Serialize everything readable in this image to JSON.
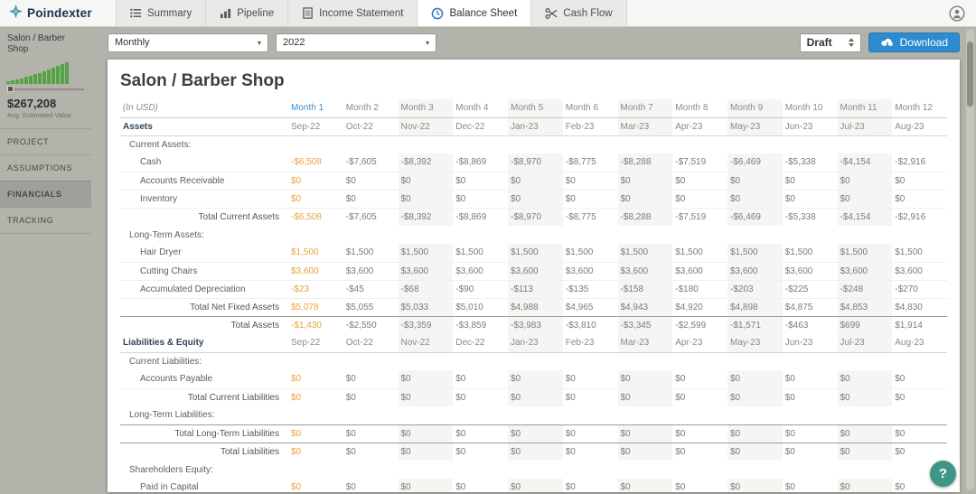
{
  "app": {
    "logo_text": "Poindexter",
    "nav": [
      {
        "label": "Summary",
        "icon": "list-icon",
        "active": false
      },
      {
        "label": "Pipeline",
        "icon": "bar-chart-icon",
        "active": false
      },
      {
        "label": "Income Statement",
        "icon": "document-icon",
        "active": false
      },
      {
        "label": "Balance Sheet",
        "icon": "clock-icon",
        "active": true
      },
      {
        "label": "Cash Flow",
        "icon": "scissors-icon",
        "active": false
      }
    ]
  },
  "sidebar": {
    "project_name": "Salon / Barber Shop",
    "avg_value": "$267,208",
    "avg_value_label": "Avg. Estimated Value",
    "menu": [
      {
        "label": "PROJECT",
        "active": false
      },
      {
        "label": "ASSUMPTIONS",
        "active": false
      },
      {
        "label": "FINANCIALS",
        "active": true
      },
      {
        "label": "TRACKING",
        "active": false
      }
    ],
    "sparkline": {
      "type": "bar",
      "color": "#55a347",
      "values": [
        3,
        4,
        5,
        6,
        8,
        9,
        11,
        12,
        14,
        16,
        18,
        20,
        22,
        24
      ]
    }
  },
  "toolbar": {
    "period_select": "Monthly",
    "year_select": "2022",
    "status_select": "Draft",
    "download_label": "Download"
  },
  "main": {
    "title": "Salon / Barber Shop"
  },
  "balance_sheet": {
    "in_usd_label": "(In USD)",
    "month_headers": [
      "Month 1",
      "Month 2",
      "Month 3",
      "Month 4",
      "Month 5",
      "Month 6",
      "Month 7",
      "Month 8",
      "Month 9",
      "Month 10",
      "Month 11",
      "Month 12"
    ],
    "date_headers": [
      "Sep-22",
      "Oct-22",
      "Nov-22",
      "Dec-22",
      "Jan-23",
      "Feb-23",
      "Mar-23",
      "Apr-23",
      "May-23",
      "Jun-23",
      "Jul-23",
      "Aug-23"
    ],
    "rows": [
      {
        "type": "group",
        "label": "Assets"
      },
      {
        "type": "section",
        "label": "Current Assets:"
      },
      {
        "type": "data",
        "label": "Cash",
        "values": [
          "-$6,508",
          "-$7,605",
          "-$8,392",
          "-$8,869",
          "-$8,970",
          "-$8,775",
          "-$8,288",
          "-$7,519",
          "-$6,469",
          "-$5,338",
          "-$4,154",
          "-$2,916"
        ]
      },
      {
        "type": "data",
        "label": "Accounts Receivable",
        "fill": "$0"
      },
      {
        "type": "data",
        "label": "Inventory",
        "fill": "$0"
      },
      {
        "type": "total",
        "label": "Total Current Assets",
        "values": [
          "-$6,508",
          "-$7,605",
          "-$8,392",
          "-$8,869",
          "-$8,970",
          "-$8,775",
          "-$8,288",
          "-$7,519",
          "-$6,469",
          "-$5,338",
          "-$4,154",
          "-$2,916"
        ]
      },
      {
        "type": "section",
        "label": "Long-Term Assets:"
      },
      {
        "type": "data",
        "label": "Hair Dryer",
        "fill": "$1,500"
      },
      {
        "type": "data",
        "label": "Cutting Chairs",
        "fill": "$3,600"
      },
      {
        "type": "data",
        "label": "Accumulated Depreciation",
        "values": [
          "-$23",
          "-$45",
          "-$68",
          "-$90",
          "-$113",
          "-$135",
          "-$158",
          "-$180",
          "-$203",
          "-$225",
          "-$248",
          "-$270"
        ]
      },
      {
        "type": "total",
        "label": "Total Net Fixed Assets",
        "values": [
          "$5,078",
          "$5,055",
          "$5,033",
          "$5,010",
          "$4,988",
          "$4,965",
          "$4,943",
          "$4,920",
          "$4,898",
          "$4,875",
          "$4,853",
          "$4,830"
        ]
      },
      {
        "type": "total",
        "label": "Total Assets",
        "values": [
          "-$1,430",
          "-$2,550",
          "-$3,359",
          "-$3,859",
          "-$3,983",
          "-$3,810",
          "-$3,345",
          "-$2,599",
          "-$1,571",
          "-$463",
          "$699",
          "$1,914"
        ]
      },
      {
        "type": "group",
        "label": "Liabilities & Equity"
      },
      {
        "type": "section",
        "label": "Current Liabilities:"
      },
      {
        "type": "data",
        "label": "Accounts Payable",
        "fill": "$0"
      },
      {
        "type": "total",
        "label": "Total Current Liabilities",
        "fill": "$0"
      },
      {
        "type": "section",
        "label": "Long-Term Liabilities:"
      },
      {
        "type": "total",
        "label": "Total Long-Term Liabilities",
        "fill": "$0"
      },
      {
        "type": "total",
        "label": "Total Liabilities",
        "fill": "$0"
      },
      {
        "type": "section",
        "label": "Shareholders Equity:"
      },
      {
        "type": "data",
        "label": "Paid in Capital",
        "fill": "$0"
      }
    ]
  },
  "help_button_label": "?",
  "colors": {
    "accent_orange": "#e8a33d",
    "link_blue": "#3d8fd1",
    "button_blue": "#2e8bd0",
    "page_background": "#b3b2ab"
  }
}
